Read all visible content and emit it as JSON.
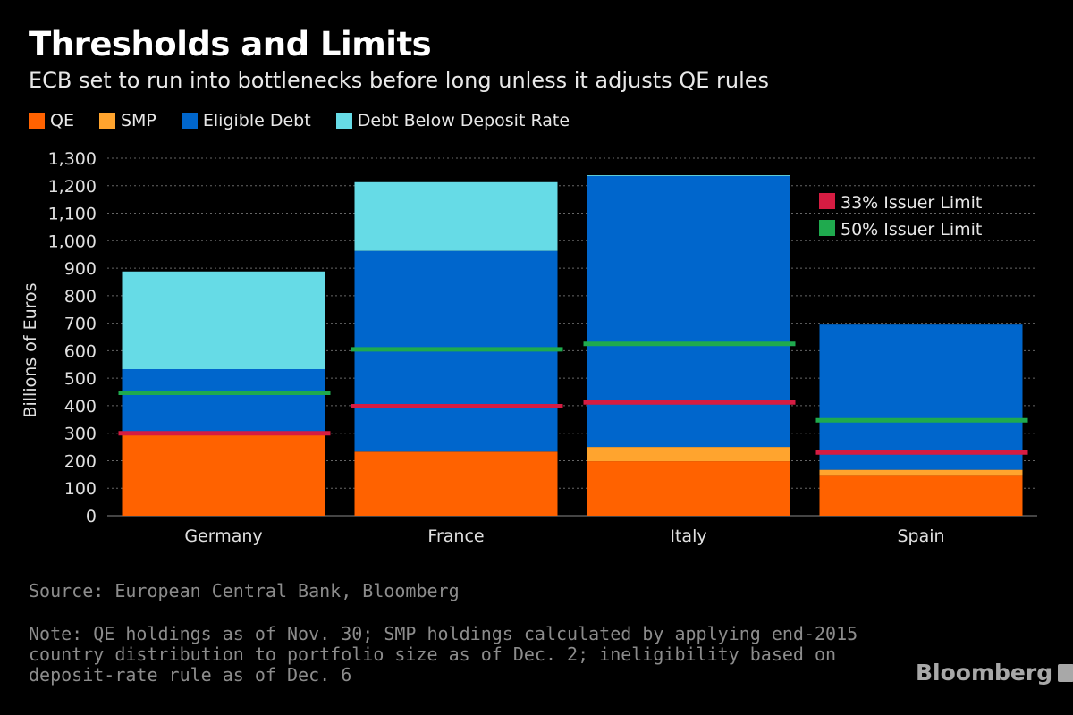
{
  "title": "Thresholds and Limits",
  "subtitle": "ECB set to run into bottlenecks before long unless it adjusts QE rules",
  "legend": [
    {
      "label": "QE",
      "color": "#ff6200"
    },
    {
      "label": "SMP",
      "color": "#ffa42e"
    },
    {
      "label": "Eligible Debt",
      "color": "#0066cc"
    },
    {
      "label": "Debt Below Deposit Rate",
      "color": "#66dbe6"
    }
  ],
  "limits_legend": [
    {
      "label": "33% Issuer Limit",
      "color": "#d61c42"
    },
    {
      "label": "50% Issuer Limit",
      "color": "#1faa4e"
    }
  ],
  "source": "Source: European Central Bank, Bloomberg",
  "note": "Note: QE holdings as of Nov. 30; SMP holdings calculated by applying end-2015 country distribution to portfolio size as of Dec. 2; ineligibility based on deposit-rate rule as of Dec. 6",
  "brand": "Bloomberg",
  "chart_data": {
    "type": "bar",
    "stacked": true,
    "categories": [
      "Germany",
      "France",
      "Italy",
      "Spain"
    ],
    "series": [
      {
        "name": "QE",
        "color": "#ff6200",
        "values": [
          293,
          233,
          198,
          145
        ]
      },
      {
        "name": "SMP",
        "color": "#ffa42e",
        "values": [
          0,
          0,
          52,
          22
        ]
      },
      {
        "name": "Eligible Debt",
        "color": "#0066cc",
        "values": [
          240,
          730,
          985,
          528
        ]
      },
      {
        "name": "Debt Below Deposit Rate",
        "color": "#66dbe6",
        "values": [
          355,
          250,
          3,
          0
        ]
      }
    ],
    "limits": [
      {
        "name": "33% Issuer Limit",
        "color": "#d61c42",
        "values": [
          300,
          398,
          412,
          230
        ]
      },
      {
        "name": "50% Issuer Limit",
        "color": "#1faa4e",
        "values": [
          447,
          605,
          625,
          347
        ]
      }
    ],
    "ylabel": "Billions of Euros",
    "yticks": [
      0,
      100,
      200,
      300,
      400,
      500,
      600,
      700,
      800,
      900,
      1000,
      1100,
      1200,
      1300
    ],
    "ytick_labels": [
      "0",
      "100",
      "200",
      "300",
      "400",
      "500",
      "600",
      "700",
      "800",
      "900",
      "1,000",
      "1,100",
      "1,200",
      "1,300"
    ],
    "ylim": [
      0,
      1300
    ],
    "grid": true
  }
}
